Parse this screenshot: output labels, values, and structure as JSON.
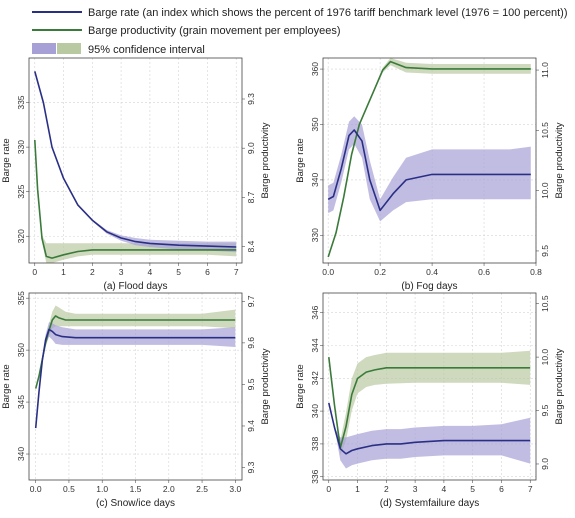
{
  "legend": {
    "barge_rate": "Barge rate (an index which shows the percent of 1976 tariff benchmark level (1976 = 100 percent))",
    "barge_productivity": "Barge productivity (grain movement per employees)",
    "ci": "95% confidence interval"
  },
  "colors": {
    "rate_line": "#2a2f86",
    "prod_line": "#3a7a3a",
    "rate_band": "#a7a0d6",
    "prod_band": "#b9c9a2"
  },
  "chart_data": [
    {
      "type": "line",
      "caption": "(a) Flood days",
      "ylabel_left": "Barge rate",
      "ylabel_right": "Barge productivity",
      "xlim": [
        -0.2,
        7.2
      ],
      "ylim_left": [
        317,
        340
      ],
      "ylim_right": [
        8.3,
        9.55
      ],
      "xticks": [
        "0",
        "1",
        "2",
        "3",
        "4",
        "5",
        "6",
        "7"
      ],
      "yticks_left": [
        "320",
        "325",
        "330",
        "335"
      ],
      "yticks_right": [
        "8.4",
        "8.7",
        "9.0",
        "9.3"
      ],
      "series": [
        {
          "axis": "left",
          "x": [
            0,
            0.3,
            0.6,
            1,
            1.5,
            2,
            2.5,
            3,
            3.5,
            4,
            5,
            6,
            7
          ],
          "y": [
            338.5,
            335,
            330,
            326.5,
            323.5,
            321.8,
            320.5,
            319.8,
            319.4,
            319.2,
            319.0,
            318.9,
            318.8
          ],
          "lo": [
            338.5,
            335,
            330,
            326.5,
            323.5,
            321.7,
            320.3,
            319.5,
            319.0,
            318.8,
            318.5,
            318.4,
            318.2
          ],
          "hi": [
            338.5,
            335,
            330,
            326.5,
            323.5,
            321.9,
            320.7,
            320.1,
            319.8,
            319.6,
            319.5,
            319.4,
            319.4
          ]
        },
        {
          "axis": "right",
          "x": [
            0,
            0.1,
            0.25,
            0.4,
            0.6,
            1,
            1.5,
            2,
            2.5,
            3,
            4,
            5,
            6,
            7
          ],
          "y": [
            9.05,
            8.75,
            8.45,
            8.34,
            8.33,
            8.35,
            8.37,
            8.38,
            8.38,
            8.38,
            8.38,
            8.38,
            8.38,
            8.38
          ],
          "lo": [
            9.05,
            8.75,
            8.43,
            8.3,
            8.3,
            8.32,
            8.34,
            8.35,
            8.35,
            8.35,
            8.35,
            8.35,
            8.35,
            8.34
          ],
          "hi": [
            9.05,
            8.75,
            8.47,
            8.42,
            8.42,
            8.42,
            8.42,
            8.42,
            8.42,
            8.42,
            8.42,
            8.42,
            8.42,
            8.42
          ]
        }
      ]
    },
    {
      "type": "line",
      "caption": "(b) Fog days",
      "ylabel_left": "Barge rate",
      "ylabel_right": "Barge productivity",
      "xlim": [
        -0.02,
        0.8
      ],
      "ylim_left": [
        325,
        362
      ],
      "ylim_right": [
        9.4,
        11.1
      ],
      "xticks": [
        "0.0",
        "0.2",
        "0.4",
        "0.6",
        "0.8"
      ],
      "yticks_left": [
        "330",
        "340",
        "350",
        "360"
      ],
      "yticks_right": [
        "9.5",
        "10.0",
        "10.5",
        "11.0"
      ],
      "series": [
        {
          "axis": "left",
          "x": [
            0,
            0.02,
            0.05,
            0.08,
            0.1,
            0.13,
            0.16,
            0.2,
            0.25,
            0.3,
            0.4,
            0.5,
            0.6,
            0.7,
            0.78
          ],
          "y": [
            336.5,
            337,
            342,
            348,
            349,
            347,
            340,
            334.5,
            337.5,
            340,
            341,
            341,
            341,
            341,
            341
          ],
          "lo": [
            334,
            334.5,
            339.5,
            345.5,
            346.5,
            344,
            336.5,
            332.5,
            334.5,
            336,
            336.5,
            336.5,
            336.5,
            336.5,
            336.5
          ],
          "hi": [
            339,
            339.5,
            344.5,
            350.5,
            351.5,
            350,
            343.5,
            336.5,
            340.5,
            344,
            345.5,
            345.5,
            345.5,
            345.5,
            346
          ]
        },
        {
          "axis": "right",
          "x": [
            0,
            0.03,
            0.06,
            0.09,
            0.12,
            0.15,
            0.18,
            0.21,
            0.24,
            0.3,
            0.4,
            0.5,
            0.6,
            0.7,
            0.78
          ],
          "y": [
            9.45,
            9.65,
            9.95,
            10.3,
            10.55,
            10.7,
            10.85,
            11.0,
            11.07,
            11.02,
            11.01,
            11.01,
            11.01,
            11.01,
            11.01
          ],
          "lo": [
            9.45,
            9.65,
            9.95,
            10.3,
            10.55,
            10.7,
            10.84,
            10.98,
            11.04,
            10.98,
            10.97,
            10.97,
            10.97,
            10.97,
            10.97
          ],
          "hi": [
            9.45,
            9.65,
            9.95,
            10.3,
            10.55,
            10.7,
            10.86,
            11.02,
            11.1,
            11.06,
            11.05,
            11.05,
            11.05,
            11.05,
            11.05
          ]
        }
      ]
    },
    {
      "type": "line",
      "caption": "(c) Snow/ice days",
      "ylabel_left": "Barge rate",
      "ylabel_right": "Barge productivity",
      "xlim": [
        -0.1,
        3.1
      ],
      "ylim_left": [
        337.5,
        355.5
      ],
      "ylim_right": [
        9.27,
        9.72
      ],
      "xticks": [
        "0.0",
        "0.5",
        "1.0",
        "1.5",
        "2.0",
        "2.5",
        "3.0"
      ],
      "yticks_left": [
        "340",
        "345",
        "350",
        "355"
      ],
      "yticks_right": [
        "9.3",
        "9.4",
        "9.5",
        "9.6",
        "9.7"
      ],
      "series": [
        {
          "axis": "left",
          "x": [
            0,
            0.05,
            0.1,
            0.15,
            0.2,
            0.25,
            0.3,
            0.4,
            0.6,
            1,
            1.5,
            2,
            2.5,
            3
          ],
          "y": [
            342.5,
            346,
            349,
            351,
            352,
            351.8,
            351.5,
            351.3,
            351.2,
            351.2,
            351.2,
            351.2,
            351.2,
            351.2
          ],
          "lo": [
            342.5,
            346,
            349,
            350.5,
            351.3,
            351,
            350.6,
            350.5,
            350.5,
            350.5,
            350.5,
            350.5,
            350.5,
            350.3
          ],
          "hi": [
            342.5,
            346,
            349,
            351.5,
            352.7,
            352.6,
            352.4,
            352.2,
            352,
            352,
            352,
            352,
            352,
            352.2
          ]
        },
        {
          "axis": "right",
          "x": [
            0,
            0.05,
            0.1,
            0.15,
            0.2,
            0.25,
            0.3,
            0.35,
            0.45,
            0.6,
            1,
            1.5,
            2,
            2.5,
            3
          ],
          "y": [
            9.49,
            9.52,
            9.56,
            9.6,
            9.63,
            9.655,
            9.665,
            9.66,
            9.655,
            9.655,
            9.655,
            9.655,
            9.655,
            9.655,
            9.655
          ],
          "lo": [
            9.49,
            9.52,
            9.56,
            9.59,
            9.615,
            9.635,
            9.64,
            9.64,
            9.64,
            9.64,
            9.64,
            9.64,
            9.64,
            9.64,
            9.635
          ],
          "hi": [
            9.49,
            9.52,
            9.56,
            9.61,
            9.645,
            9.675,
            9.69,
            9.685,
            9.675,
            9.67,
            9.67,
            9.67,
            9.67,
            9.67,
            9.68
          ]
        }
      ]
    },
    {
      "type": "line",
      "caption": "(d) Systemfailure days",
      "ylabel_left": "Barge rate",
      "ylabel_right": "Barge productivity",
      "xlim": [
        -0.2,
        7.2
      ],
      "ylim_left": [
        335.8,
        347.2
      ],
      "ylim_right": [
        8.85,
        10.6
      ],
      "xticks": [
        "0",
        "1",
        "2",
        "3",
        "4",
        "5",
        "6",
        "7"
      ],
      "yticks_left": [
        "336",
        "338",
        "340",
        "342",
        "344",
        "346"
      ],
      "yticks_right": [
        "9.0",
        "9.5",
        "10.0",
        "10.5"
      ],
      "series": [
        {
          "axis": "left",
          "x": [
            0,
            0.2,
            0.4,
            0.6,
            0.8,
            1,
            1.5,
            2,
            2.5,
            3,
            4,
            5,
            6,
            7
          ],
          "y": [
            340.5,
            339,
            337.7,
            337.4,
            337.6,
            337.7,
            337.9,
            338,
            338,
            338.1,
            338.2,
            338.2,
            338.2,
            338.2
          ],
          "lo": [
            340.5,
            339,
            337,
            336.5,
            336.7,
            336.8,
            337,
            337.1,
            337.1,
            337.2,
            337.3,
            337.3,
            337.3,
            336.8
          ],
          "hi": [
            340.5,
            339,
            338.4,
            338.4,
            338.5,
            338.6,
            338.8,
            338.9,
            338.9,
            339,
            339.1,
            339.1,
            339.2,
            339.6
          ]
        },
        {
          "axis": "right",
          "x": [
            0,
            0.2,
            0.4,
            0.6,
            0.8,
            1,
            1.3,
            1.6,
            2,
            3,
            4,
            5,
            6,
            7
          ],
          "y": [
            10.0,
            9.55,
            9.15,
            9.35,
            9.65,
            9.8,
            9.86,
            9.88,
            9.9,
            9.9,
            9.9,
            9.9,
            9.9,
            9.9
          ],
          "lo": [
            10.0,
            9.55,
            9.08,
            9.22,
            9.5,
            9.66,
            9.72,
            9.74,
            9.75,
            9.76,
            9.76,
            9.76,
            9.76,
            9.74
          ],
          "hi": [
            10.0,
            9.55,
            9.22,
            9.48,
            9.8,
            9.94,
            10.0,
            10.02,
            10.04,
            10.04,
            10.04,
            10.04,
            10.04,
            10.06
          ]
        }
      ]
    }
  ]
}
